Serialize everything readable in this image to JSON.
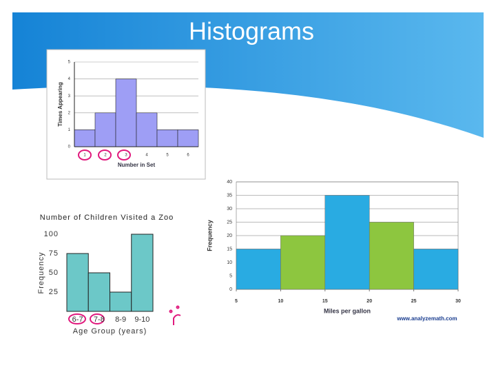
{
  "title": "Histograms",
  "chart_data": [
    {
      "type": "bar",
      "categories": [
        "1",
        "2",
        "3",
        "4",
        "5",
        "6"
      ],
      "values": [
        1,
        2,
        4,
        2,
        1,
        1
      ],
      "color": "#9e9ef5",
      "ylim": [
        0,
        5
      ],
      "yticks": [
        0,
        1,
        2,
        3,
        4,
        5
      ],
      "grid": true,
      "xlabel": "Number in Set",
      "ylabel": "Times Appearing"
    },
    {
      "type": "bar",
      "title": "Number of Children Visited a Zoo",
      "categories": [
        "6-7",
        "7-8",
        "8-9",
        "9-10"
      ],
      "values": [
        75,
        50,
        25,
        100
      ],
      "color": "#6cc8c8",
      "ylim": [
        0,
        100
      ],
      "yticks": [
        25,
        50,
        75,
        100
      ],
      "grid": false,
      "xlabel": "Age Group (years)",
      "ylabel": "Frequency"
    },
    {
      "type": "histogram",
      "bins": [
        5,
        10,
        15,
        20,
        25,
        30
      ],
      "values": [
        15,
        20,
        35,
        25,
        15
      ],
      "colors": [
        "#29abe2",
        "#8dc63f",
        "#29abe2",
        "#8dc63f",
        "#29abe2"
      ],
      "xlim": [
        5,
        30
      ],
      "xticks": [
        5,
        10,
        15,
        20,
        25,
        30
      ],
      "ylim": [
        0,
        40
      ],
      "yticks": [
        0,
        5,
        10,
        15,
        20,
        25,
        30,
        35,
        40
      ],
      "grid": true,
      "xlabel": "Miles per gallon",
      "ylabel": "Frequency",
      "source": "www.analyzemath.com"
    }
  ]
}
